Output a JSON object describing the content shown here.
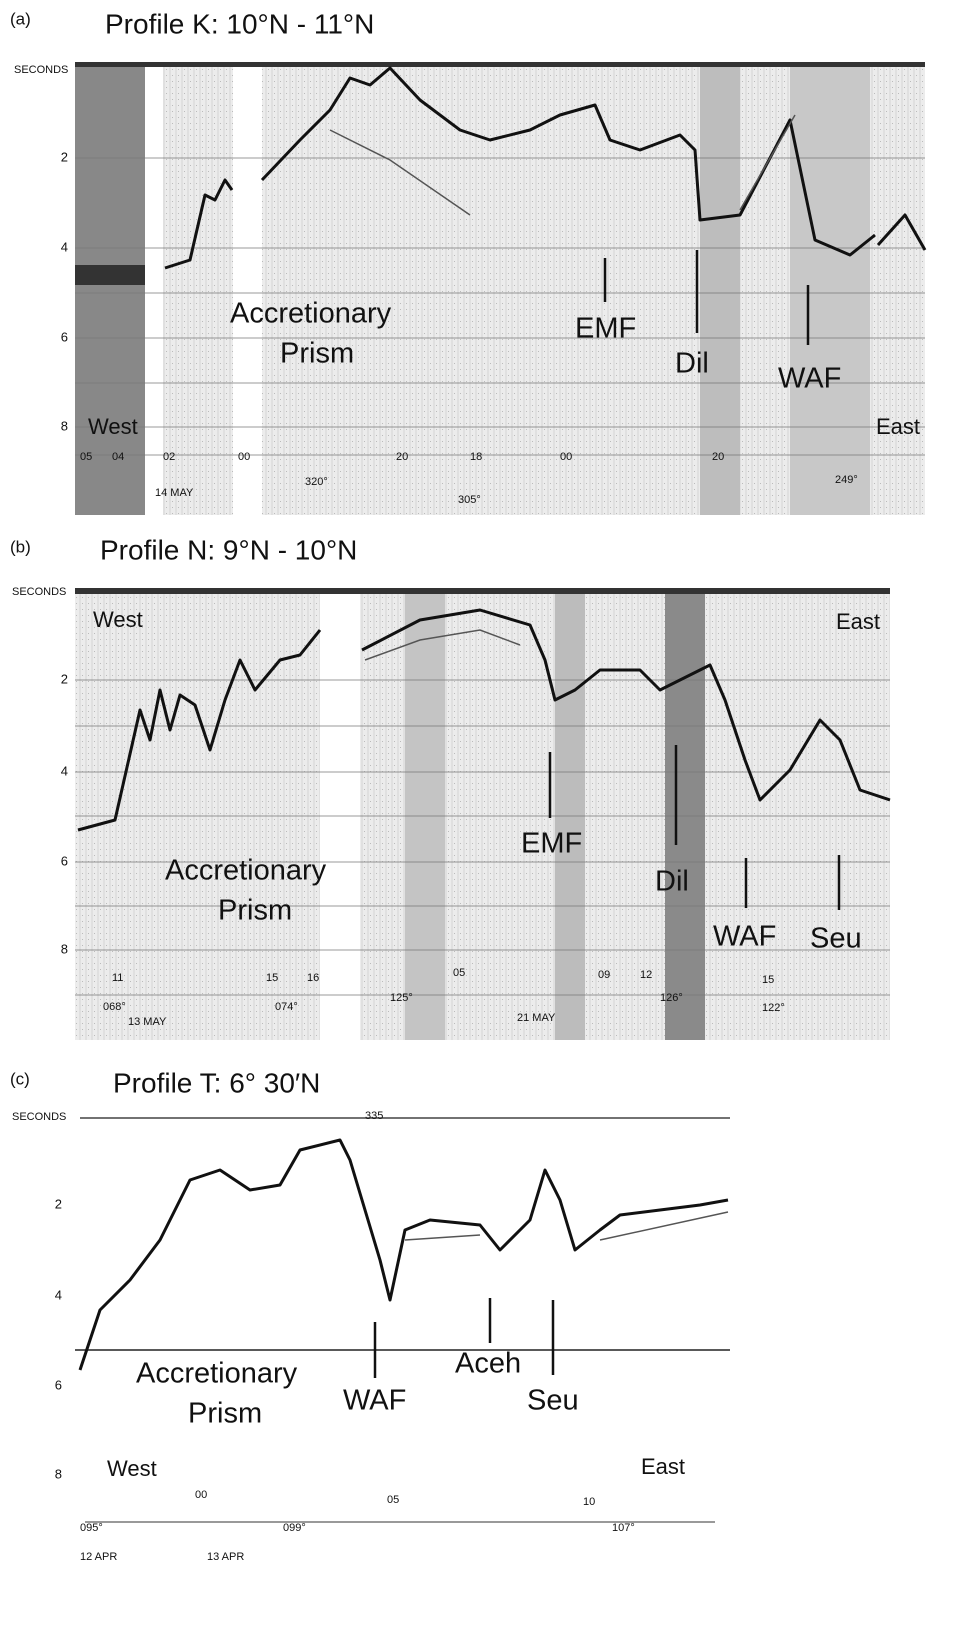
{
  "panels": [
    {
      "label": "(a)",
      "title": "Profile K: 10°N - 11°N",
      "axis_title": "SECONDS",
      "axis_labels": [
        "2",
        "4",
        "6",
        "8"
      ],
      "annotations": [
        "Accretionary",
        "Prism",
        "EMF",
        "Dil",
        "WAF",
        "West",
        "East"
      ],
      "record_marks": [
        "05",
        "04",
        "02",
        "00",
        "20",
        "18",
        "00",
        "20",
        "320°",
        "305°",
        "249°",
        "14 MAY"
      ]
    },
    {
      "label": "(b)",
      "title": "Profile N: 9°N - 10°N",
      "axis_title": "SECONDS",
      "axis_labels": [
        "2",
        "4",
        "6",
        "8"
      ],
      "annotations": [
        "West",
        "East",
        "Accretionary",
        "Prism",
        "EMF",
        "Dil",
        "WAF",
        "Seu"
      ],
      "record_marks": [
        "11",
        "068°",
        "13 MAY",
        "15",
        "074°",
        "16",
        "05",
        "125°",
        "21 MAY",
        "09",
        "12",
        "126°",
        "15",
        "122°"
      ]
    },
    {
      "label": "(c)",
      "title": "Profile T: 6° 30′N",
      "axis_title": "SECONDS",
      "axis_labels": [
        "2",
        "4",
        "6",
        "8"
      ],
      "annotations": [
        "Accretionary",
        "Prism",
        "WAF",
        "Aceh",
        "Seu",
        "West",
        "East"
      ],
      "record_marks": [
        "335",
        "095°",
        "00",
        "099°",
        "05",
        "10",
        "107°",
        "12 APR",
        "13 APR"
      ]
    }
  ]
}
